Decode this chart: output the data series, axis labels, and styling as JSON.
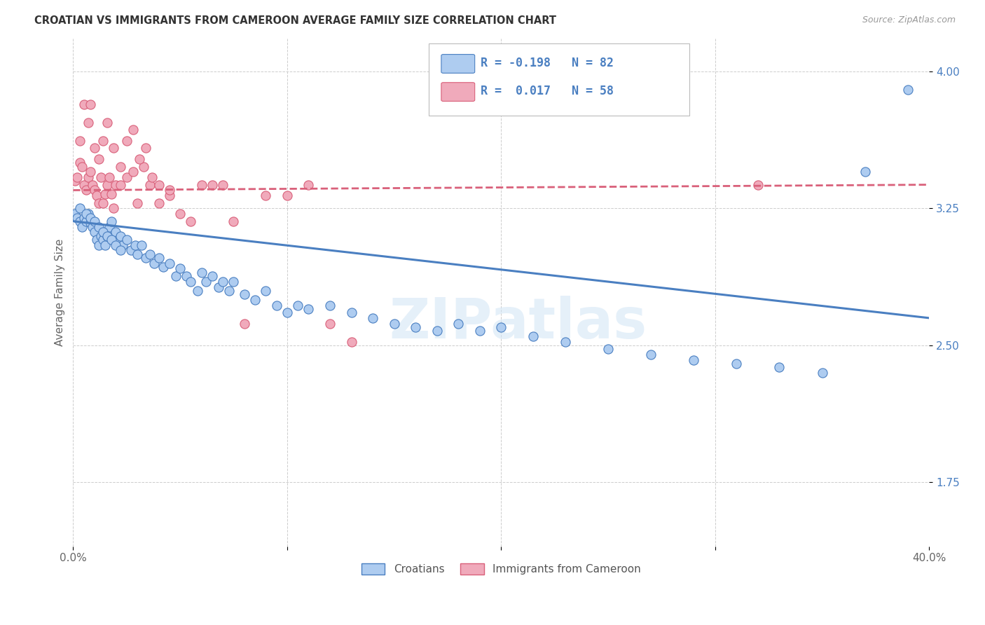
{
  "title": "CROATIAN VS IMMIGRANTS FROM CAMEROON AVERAGE FAMILY SIZE CORRELATION CHART",
  "source": "Source: ZipAtlas.com",
  "ylabel": "Average Family Size",
  "yticks": [
    1.75,
    2.5,
    3.25,
    4.0
  ],
  "xlim": [
    0.0,
    0.4
  ],
  "ylim": [
    1.4,
    4.18
  ],
  "watermark": "ZIPatlas",
  "blue_R": -0.198,
  "blue_N": 82,
  "pink_R": 0.017,
  "pink_N": 58,
  "blue_color": "#aeccf0",
  "pink_color": "#f0aabb",
  "blue_line_color": "#4a7fc1",
  "pink_line_color": "#d9607a",
  "blue_scatter_x": [
    0.001,
    0.002,
    0.003,
    0.004,
    0.005,
    0.006,
    0.007,
    0.008,
    0.009,
    0.01,
    0.011,
    0.012,
    0.013,
    0.014,
    0.015,
    0.016,
    0.017,
    0.018,
    0.019,
    0.02,
    0.021,
    0.022,
    0.023,
    0.025,
    0.027,
    0.029,
    0.03,
    0.032,
    0.034,
    0.036,
    0.038,
    0.04,
    0.042,
    0.045,
    0.048,
    0.05,
    0.053,
    0.055,
    0.058,
    0.06,
    0.062,
    0.065,
    0.068,
    0.07,
    0.073,
    0.075,
    0.08,
    0.085,
    0.09,
    0.095,
    0.1,
    0.105,
    0.11,
    0.12,
    0.13,
    0.14,
    0.15,
    0.16,
    0.17,
    0.18,
    0.19,
    0.2,
    0.215,
    0.23,
    0.25,
    0.27,
    0.29,
    0.31,
    0.33,
    0.35,
    0.37,
    0.39,
    0.003,
    0.006,
    0.008,
    0.01,
    0.012,
    0.014,
    0.016,
    0.018,
    0.02,
    0.022
  ],
  "blue_scatter_y": [
    3.22,
    3.2,
    3.18,
    3.15,
    3.2,
    3.18,
    3.22,
    3.17,
    3.15,
    3.12,
    3.08,
    3.05,
    3.1,
    3.08,
    3.05,
    3.1,
    3.15,
    3.18,
    3.1,
    3.12,
    3.08,
    3.1,
    3.05,
    3.08,
    3.02,
    3.05,
    3.0,
    3.05,
    2.98,
    3.0,
    2.95,
    2.98,
    2.93,
    2.95,
    2.88,
    2.92,
    2.88,
    2.85,
    2.8,
    2.9,
    2.85,
    2.88,
    2.82,
    2.85,
    2.8,
    2.85,
    2.78,
    2.75,
    2.8,
    2.72,
    2.68,
    2.72,
    2.7,
    2.72,
    2.68,
    2.65,
    2.62,
    2.6,
    2.58,
    2.62,
    2.58,
    2.6,
    2.55,
    2.52,
    2.48,
    2.45,
    2.42,
    2.4,
    2.38,
    2.35,
    3.45,
    3.9,
    3.25,
    3.22,
    3.2,
    3.18,
    3.15,
    3.12,
    3.1,
    3.08,
    3.05,
    3.02
  ],
  "pink_scatter_x": [
    0.001,
    0.002,
    0.003,
    0.004,
    0.005,
    0.006,
    0.007,
    0.008,
    0.009,
    0.01,
    0.011,
    0.012,
    0.013,
    0.014,
    0.015,
    0.016,
    0.017,
    0.018,
    0.019,
    0.02,
    0.022,
    0.025,
    0.028,
    0.03,
    0.033,
    0.036,
    0.04,
    0.045,
    0.05,
    0.055,
    0.06,
    0.065,
    0.07,
    0.075,
    0.08,
    0.09,
    0.1,
    0.11,
    0.12,
    0.003,
    0.005,
    0.007,
    0.008,
    0.01,
    0.012,
    0.014,
    0.016,
    0.019,
    0.022,
    0.025,
    0.028,
    0.031,
    0.034,
    0.037,
    0.04,
    0.045,
    0.32,
    0.13
  ],
  "pink_scatter_y": [
    3.4,
    3.42,
    3.5,
    3.48,
    3.38,
    3.35,
    3.42,
    3.45,
    3.38,
    3.35,
    3.32,
    3.28,
    3.42,
    3.28,
    3.33,
    3.38,
    3.42,
    3.33,
    3.25,
    3.38,
    3.38,
    3.42,
    3.45,
    3.28,
    3.48,
    3.38,
    3.28,
    3.32,
    3.22,
    3.18,
    3.38,
    3.38,
    3.38,
    3.18,
    2.62,
    3.32,
    3.32,
    3.38,
    2.62,
    3.62,
    3.82,
    3.72,
    3.82,
    3.58,
    3.52,
    3.62,
    3.72,
    3.58,
    3.48,
    3.62,
    3.68,
    3.52,
    3.58,
    3.42,
    3.38,
    3.35,
    3.38,
    2.52
  ],
  "blue_trend_x": [
    0.0,
    0.4
  ],
  "blue_trend_y": [
    3.18,
    2.65
  ],
  "pink_trend_x": [
    0.0,
    0.4
  ],
  "pink_trend_y": [
    3.35,
    3.38
  ],
  "legend_labels": [
    "Croatians",
    "Immigrants from Cameroon"
  ],
  "legend_colors": [
    "#aeccf0",
    "#f0aabb"
  ],
  "legend_edge_colors": [
    "#4a7fc1",
    "#d9607a"
  ]
}
